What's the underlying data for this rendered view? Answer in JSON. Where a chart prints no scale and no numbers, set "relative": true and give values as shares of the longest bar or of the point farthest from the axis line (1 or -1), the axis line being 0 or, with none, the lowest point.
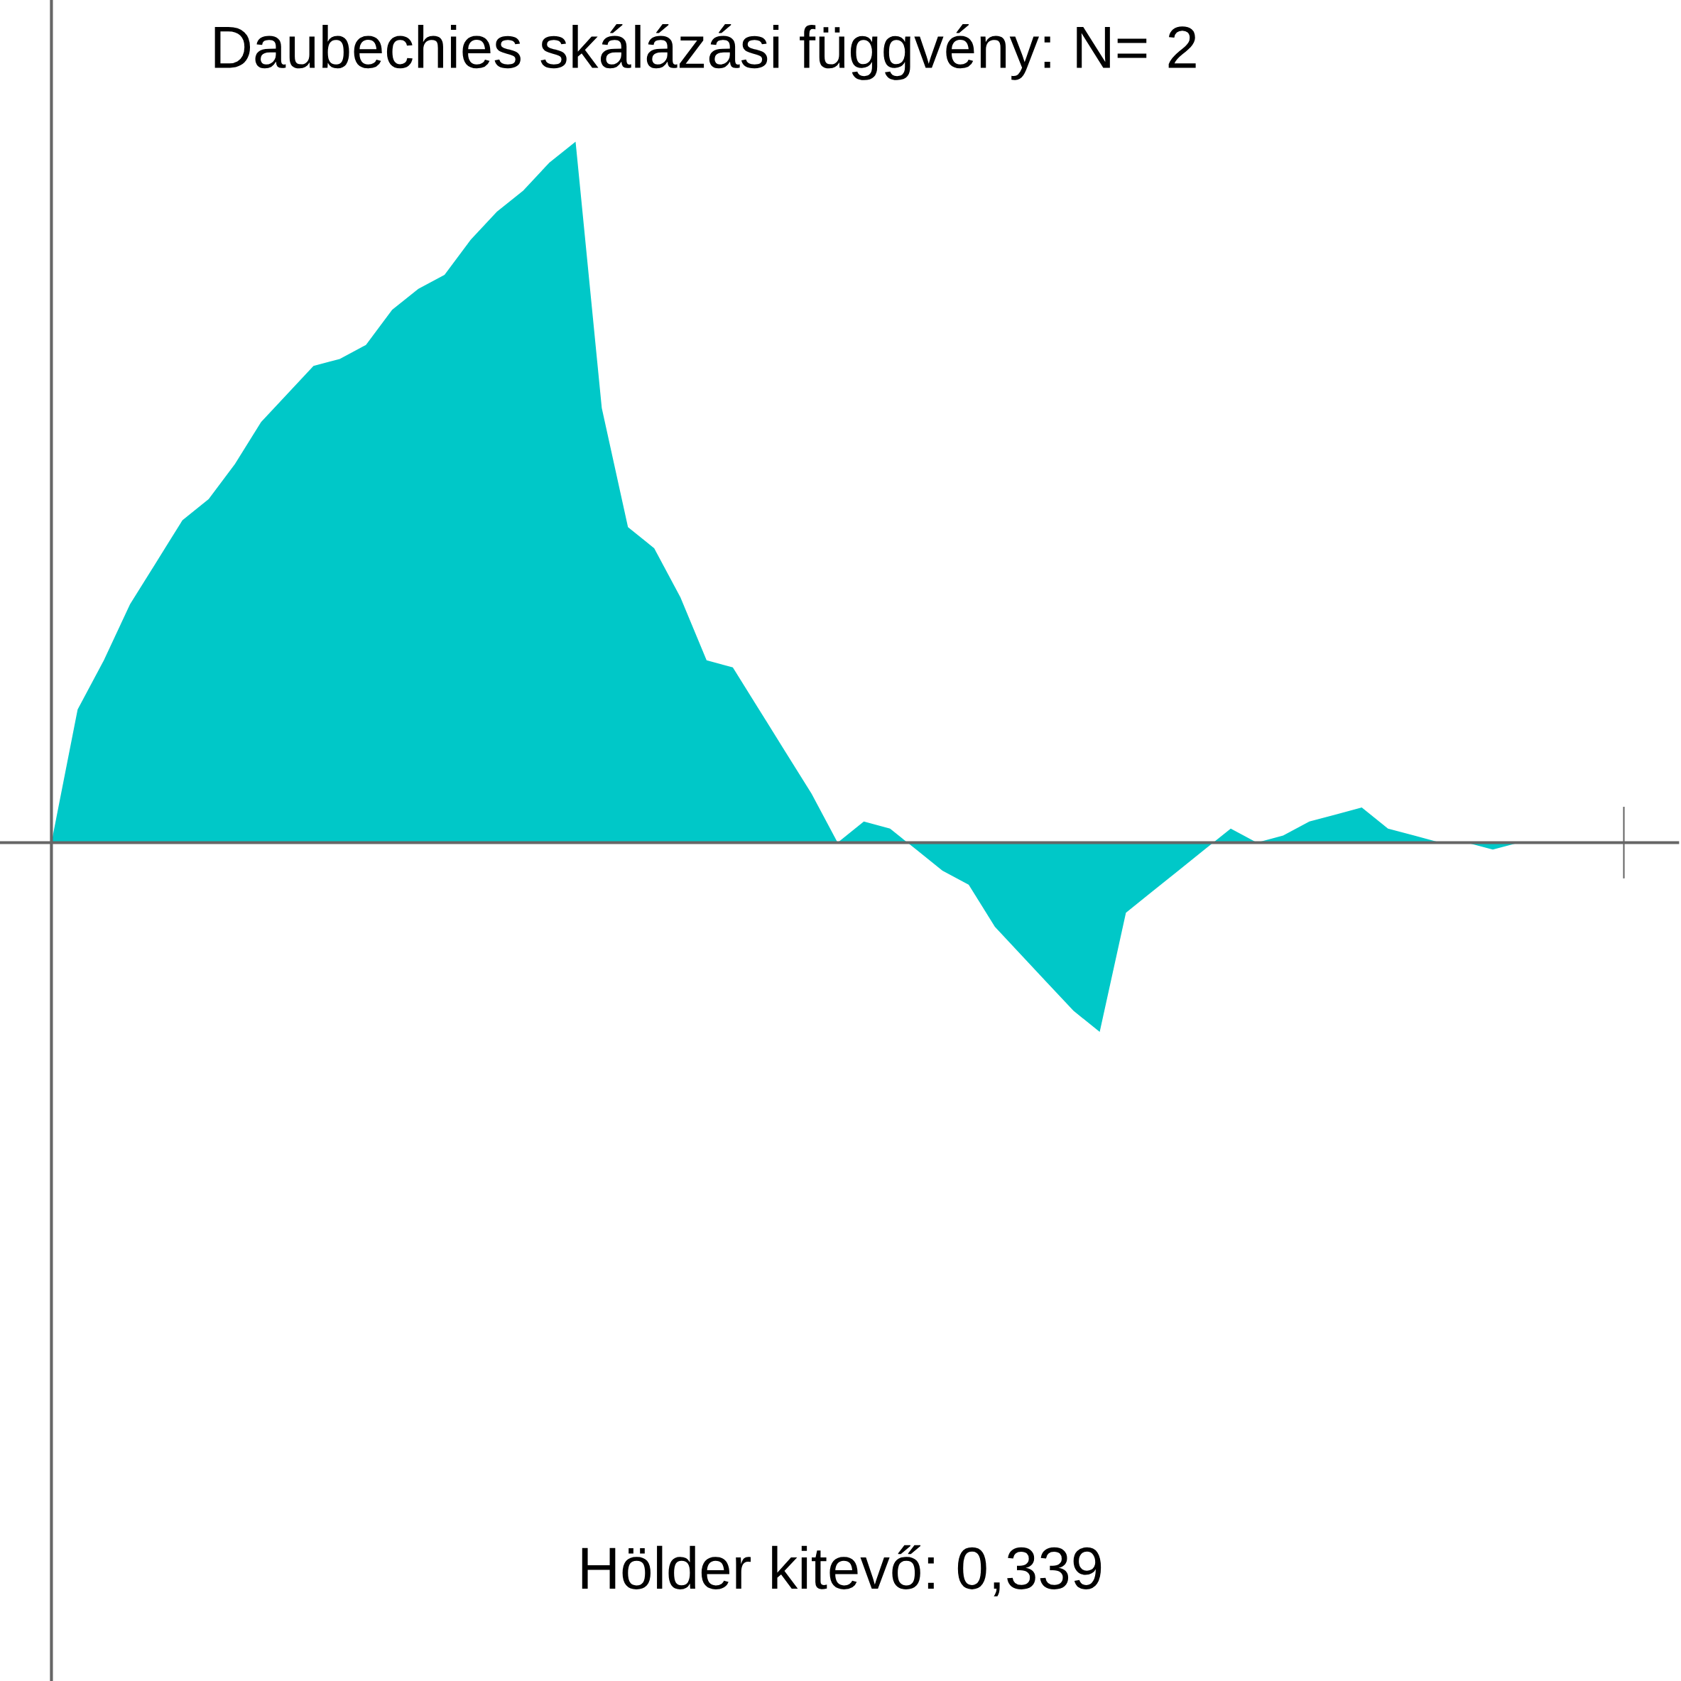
{
  "chart_data": {
    "type": "area",
    "title": "Daubechies skálázási függvény: N= 2",
    "annotations": [
      "Hölder kitevő: 0,339"
    ],
    "relative": true,
    "color": "#00c8c8",
    "categories": [
      null,
      null,
      null,
      null,
      null,
      null,
      null,
      null,
      null,
      null,
      null,
      null,
      null,
      null,
      null,
      null,
      null,
      null,
      null,
      null,
      null,
      null,
      null,
      null,
      null,
      null,
      null,
      null,
      null,
      null,
      null,
      null,
      null,
      null,
      null,
      null,
      null,
      null,
      null,
      null,
      null,
      null,
      null,
      null,
      null,
      null,
      null,
      null,
      null,
      null,
      null,
      null,
      null,
      null,
      null,
      null,
      null,
      null,
      null,
      null,
      null
    ],
    "values": [
      0,
      0.19,
      0.26,
      0.34,
      0.4,
      0.46,
      0.49,
      0.54,
      0.6,
      0.64,
      0.68,
      0.69,
      0.71,
      0.76,
      0.79,
      0.81,
      0.86,
      0.9,
      0.93,
      0.97,
      1.0,
      0.62,
      0.45,
      0.42,
      0.35,
      0.26,
      0.25,
      0.19,
      0.13,
      0.07,
      0,
      0.03,
      0.02,
      -0.01,
      -0.04,
      -0.06,
      -0.12,
      -0.16,
      -0.2,
      -0.24,
      -0.27,
      -0.1,
      -0.07,
      -0.04,
      -0.01,
      0.02,
      0,
      0.01,
      0.03,
      0.04,
      0.05,
      0.02,
      0.01,
      0,
      0,
      -0.01,
      0,
      0,
      0,
      0,
      0
    ]
  }
}
